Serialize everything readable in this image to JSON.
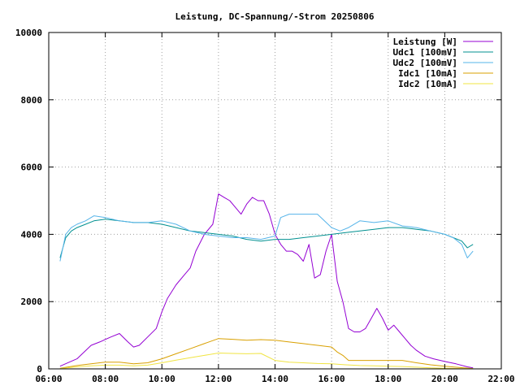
{
  "chart_data": {
    "type": "line",
    "title": "Leistung, DC-Spannung/-Strom 20250806",
    "xlabel": "",
    "ylabel": "",
    "xlim": [
      6,
      22
    ],
    "ylim": [
      0,
      10000
    ],
    "grid": true,
    "legend_position": "top-right",
    "x_ticks": [
      {
        "value": 6,
        "label": "06:00"
      },
      {
        "value": 8,
        "label": "08:00"
      },
      {
        "value": 10,
        "label": "10:00"
      },
      {
        "value": 12,
        "label": "12:00"
      },
      {
        "value": 14,
        "label": "14:00"
      },
      {
        "value": 16,
        "label": "16:00"
      },
      {
        "value": 18,
        "label": "18:00"
      },
      {
        "value": 20,
        "label": "20:00"
      },
      {
        "value": 22,
        "label": "22:00"
      }
    ],
    "y_ticks": [
      {
        "value": 0,
        "label": "0"
      },
      {
        "value": 2000,
        "label": "2000"
      },
      {
        "value": 4000,
        "label": "4000"
      },
      {
        "value": 6000,
        "label": "6000"
      },
      {
        "value": 8000,
        "label": "8000"
      },
      {
        "value": 10000,
        "label": "10000"
      }
    ],
    "series": [
      {
        "name": "Leistung [W]",
        "color": "#9400d3",
        "x": [
          6.4,
          7.0,
          7.5,
          7.8,
          8.2,
          8.5,
          8.8,
          9.0,
          9.2,
          9.5,
          9.8,
          10.0,
          10.2,
          10.5,
          10.8,
          11.0,
          11.2,
          11.5,
          11.8,
          12.0,
          12.2,
          12.4,
          12.6,
          12.8,
          13.0,
          13.2,
          13.4,
          13.6,
          13.8,
          14.0,
          14.2,
          14.4,
          14.6,
          14.8,
          15.0,
          15.2,
          15.4,
          15.6,
          15.8,
          16.0,
          16.2,
          16.4,
          16.6,
          16.8,
          17.0,
          17.2,
          17.4,
          17.6,
          17.8,
          18.0,
          18.2,
          18.4,
          18.6,
          18.8,
          19.0,
          19.3,
          19.6,
          20.0,
          20.4,
          20.8,
          21.0
        ],
        "values": [
          80,
          300,
          700,
          800,
          950,
          1050,
          800,
          650,
          700,
          950,
          1200,
          1700,
          2100,
          2500,
          2800,
          3000,
          3500,
          4000,
          4300,
          5200,
          5100,
          5000,
          4800,
          4600,
          4900,
          5100,
          5000,
          5000,
          4600,
          4000,
          3700,
          3500,
          3500,
          3400,
          3200,
          3700,
          2700,
          2800,
          3500,
          4000,
          2600,
          2000,
          1200,
          1100,
          1100,
          1200,
          1500,
          1800,
          1500,
          1150,
          1300,
          1100,
          900,
          700,
          550,
          380,
          300,
          220,
          150,
          60,
          30
        ]
      },
      {
        "name": "Udc1 [100mV]",
        "color": "#009090",
        "x": [
          6.4,
          6.6,
          6.8,
          7.0,
          7.3,
          7.6,
          8.0,
          8.5,
          9.0,
          9.5,
          10.0,
          10.5,
          11.0,
          11.5,
          12.0,
          12.5,
          13.0,
          13.5,
          14.0,
          14.5,
          15.0,
          15.5,
          16.0,
          16.5,
          17.0,
          17.5,
          18.0,
          18.5,
          19.0,
          19.5,
          20.0,
          20.3,
          20.6,
          20.8,
          21.0
        ],
        "values": [
          3300,
          3900,
          4100,
          4200,
          4300,
          4400,
          4450,
          4400,
          4350,
          4350,
          4300,
          4200,
          4100,
          4050,
          4000,
          3950,
          3850,
          3800,
          3850,
          3850,
          3900,
          3950,
          4000,
          4050,
          4100,
          4150,
          4200,
          4200,
          4150,
          4100,
          4000,
          3900,
          3800,
          3600,
          3700
        ]
      },
      {
        "name": "Udc2 [100mV]",
        "color": "#56b4e9",
        "x": [
          6.4,
          6.6,
          6.8,
          7.0,
          7.3,
          7.6,
          8.0,
          8.5,
          9.0,
          9.5,
          10.0,
          10.5,
          11.0,
          11.5,
          12.0,
          12.5,
          13.0,
          13.5,
          14.0,
          14.2,
          14.5,
          15.0,
          15.5,
          16.0,
          16.3,
          16.6,
          17.0,
          17.5,
          18.0,
          18.5,
          19.0,
          19.5,
          20.0,
          20.3,
          20.6,
          20.8,
          21.0
        ],
        "values": [
          3200,
          4000,
          4200,
          4300,
          4400,
          4550,
          4500,
          4400,
          4350,
          4350,
          4400,
          4300,
          4100,
          4000,
          3950,
          3900,
          3900,
          3850,
          3950,
          4500,
          4600,
          4600,
          4600,
          4200,
          4100,
          4200,
          4400,
          4350,
          4400,
          4250,
          4200,
          4100,
          4000,
          3900,
          3700,
          3300,
          3500
        ]
      },
      {
        "name": "Idc1 [10mA]",
        "color": "#d9a000",
        "x": [
          6.4,
          7.0,
          7.5,
          8.0,
          8.5,
          9.0,
          9.5,
          10.0,
          10.5,
          11.0,
          11.5,
          12.0,
          12.5,
          13.0,
          13.5,
          14.0,
          14.5,
          15.0,
          15.5,
          16.0,
          16.2,
          16.4,
          16.6,
          17.0,
          17.5,
          18.0,
          18.5,
          19.0,
          19.5,
          20.0,
          20.5,
          21.0
        ],
        "values": [
          20,
          100,
          150,
          200,
          200,
          150,
          180,
          300,
          450,
          600,
          750,
          900,
          880,
          850,
          870,
          850,
          800,
          750,
          700,
          650,
          500,
          400,
          250,
          250,
          250,
          250,
          250,
          180,
          120,
          80,
          40,
          10
        ]
      },
      {
        "name": "Idc2 [10mA]",
        "color": "#f0e442",
        "x": [
          6.4,
          7.0,
          7.5,
          8.0,
          8.5,
          9.0,
          9.5,
          10.0,
          10.5,
          11.0,
          11.5,
          12.0,
          12.5,
          13.0,
          13.5,
          14.0,
          14.5,
          15.0,
          15.5,
          16.0,
          16.5,
          17.0,
          17.5,
          18.0,
          18.5,
          19.0,
          19.5,
          20.0,
          20.5,
          21.0
        ],
        "values": [
          10,
          60,
          90,
          110,
          110,
          90,
          110,
          180,
          260,
          330,
          400,
          470,
          460,
          450,
          460,
          250,
          200,
          180,
          160,
          150,
          120,
          100,
          90,
          80,
          70,
          50,
          30,
          20,
          10,
          5
        ]
      }
    ]
  }
}
